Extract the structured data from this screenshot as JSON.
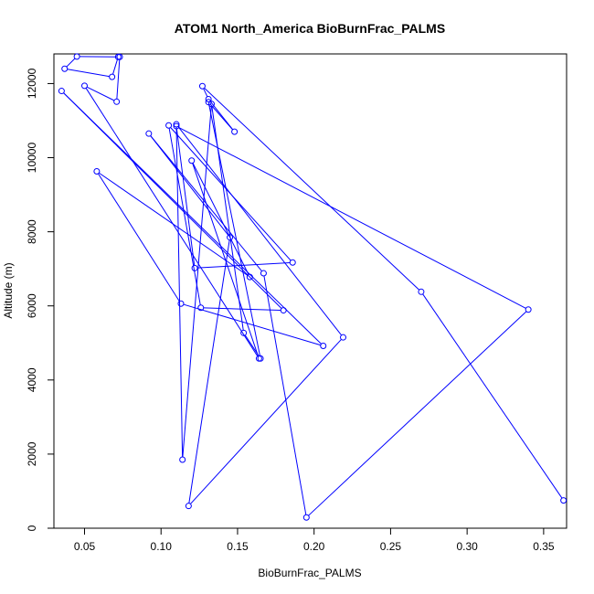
{
  "chart_data": {
    "type": "line",
    "title": "ATOM1 North_America BioBurnFrac_PALMS",
    "xlabel": "BioBurnFrac_PALMS",
    "ylabel": "Altitude (m)",
    "xlim": [
      0.03,
      0.365
    ],
    "ylim": [
      0,
      12800
    ],
    "x_ticks": [
      0.05,
      0.1,
      0.15,
      0.2,
      0.25,
      0.3,
      0.35
    ],
    "x_tick_labels": [
      "0.05",
      "0.10",
      "0.15",
      "0.20",
      "0.25",
      "0.30",
      "0.35"
    ],
    "y_ticks": [
      0,
      2000,
      4000,
      6000,
      8000,
      10000,
      12000
    ],
    "y_tick_labels": [
      "0",
      "2000",
      "4000",
      "6000",
      "8000",
      "10000",
      "12000"
    ],
    "grid": false,
    "color": "#0000ff",
    "series": [
      {
        "x": [
          0.363,
          0.27,
          0.127,
          0.131,
          0.148,
          0.131,
          0.165,
          0.154,
          0.133,
          0.114,
          0.11,
          0.219,
          0.118,
          0.145,
          0.092,
          0.167,
          0.195,
          0.34,
          0.11,
          0.122,
          0.186,
          0.105,
          0.126,
          0.18,
          0.035,
          0.206,
          0.113,
          0.058,
          0.158,
          0.12,
          0.164,
          0.05,
          0.071,
          0.073,
          0.045,
          0.037,
          0.068,
          0.072
        ],
        "y": [
          750,
          6380,
          11930,
          11580,
          10700,
          11500,
          4580,
          5270,
          11450,
          1850,
          10900,
          5150,
          600,
          7850,
          10650,
          6880,
          290,
          5900,
          10850,
          7020,
          7170,
          10870,
          5950,
          5880,
          11800,
          4920,
          6060,
          9630,
          6780,
          9920,
          4580,
          11940,
          11510,
          12720,
          12730,
          12400,
          12180,
          12720
        ]
      }
    ]
  }
}
